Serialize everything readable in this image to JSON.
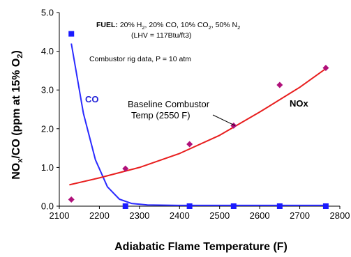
{
  "chart_data": {
    "type": "scatter",
    "title": "",
    "xlabel": "Adiabatic Flame Temperature (F)",
    "ylabel": {
      "pre": "NO",
      "sub1": "x",
      "mid": "/CO (ppm at 15% O",
      "sub2": "2",
      "post": ")"
    },
    "xlim": [
      2100,
      2800
    ],
    "ylim": [
      0,
      5
    ],
    "x_ticks": [
      "2100",
      "2200",
      "2300",
      "2400",
      "2500",
      "2600",
      "2700",
      "2800"
    ],
    "y_ticks": [
      "0.0",
      "1.0",
      "2.0",
      "3.0",
      "4.0",
      "5.0"
    ],
    "grid": false,
    "series": [
      {
        "name": "CO",
        "marker": "square",
        "color": "#1a1aff",
        "points": [
          [
            2130,
            4.45
          ],
          [
            2265,
            0.0
          ],
          [
            2425,
            0.0
          ],
          [
            2535,
            0.0
          ],
          [
            2650,
            0.0
          ],
          [
            2765,
            0.0
          ]
        ],
        "fit": [
          [
            2130,
            4.2
          ],
          [
            2160,
            2.4
          ],
          [
            2190,
            1.2
          ],
          [
            2220,
            0.5
          ],
          [
            2250,
            0.18
          ],
          [
            2280,
            0.07
          ],
          [
            2320,
            0.03
          ],
          [
            2400,
            0.02
          ],
          [
            2765,
            0.02
          ]
        ],
        "fit_color": "#2a2aff"
      },
      {
        "name": "NOx",
        "marker": "diamond",
        "color": "#b0107a",
        "points": [
          [
            2130,
            0.17
          ],
          [
            2265,
            0.97
          ],
          [
            2425,
            1.6
          ],
          [
            2535,
            2.08
          ],
          [
            2650,
            3.13
          ],
          [
            2765,
            3.57
          ]
        ],
        "fit": [
          [
            2125,
            0.55
          ],
          [
            2200,
            0.73
          ],
          [
            2300,
            1.0
          ],
          [
            2400,
            1.36
          ],
          [
            2500,
            1.83
          ],
          [
            2600,
            2.43
          ],
          [
            2700,
            3.07
          ],
          [
            2765,
            3.55
          ]
        ],
        "fit_color": "#e81e1e"
      }
    ],
    "annotations": {
      "fuel_label": "FUEL:",
      "fuel_text": {
        "a": " 20% H",
        "a_sub": "2",
        "b": ", 20% CO, 10% CO",
        "b_sub": "2",
        "c": ", 50% N",
        "c_sub": "2"
      },
      "lhv": "(LHV = 117Btu/ft3)",
      "rig": "Combustor rig data, P = 10 atm",
      "co_label": "CO",
      "nox_label": "NOx",
      "baseline_line1": "Baseline Combustor",
      "baseline_line2": "Temp (2550 F)",
      "baseline_point": [
        2535,
        2.08
      ]
    }
  }
}
